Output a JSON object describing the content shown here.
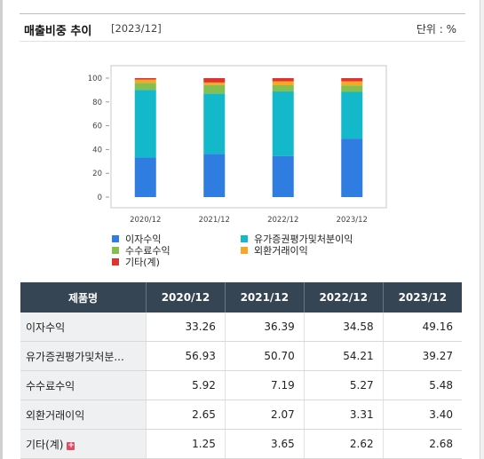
{
  "header": {
    "title": "매출비중 추이",
    "period": "[2023/12]",
    "unit": "단위 : %"
  },
  "table": {
    "headers": [
      "제품명",
      "2020/12",
      "2021/12",
      "2022/12",
      "2023/12"
    ],
    "rows": [
      {
        "name": "이자수익",
        "values": [
          "33.26",
          "36.39",
          "34.58",
          "49.16"
        ]
      },
      {
        "name": "유가증권평가및처분...",
        "values": [
          "56.93",
          "50.70",
          "54.21",
          "39.27"
        ]
      },
      {
        "name": "수수료수익",
        "values": [
          "5.92",
          "7.19",
          "5.27",
          "5.48"
        ]
      },
      {
        "name": "외환거래이익",
        "values": [
          "2.65",
          "2.07",
          "3.31",
          "3.40"
        ]
      },
      {
        "name": "기타(계)",
        "values": [
          "1.25",
          "3.65",
          "2.62",
          "2.68"
        ],
        "expand_icon": "plus-icon"
      }
    ]
  },
  "chart_data": {
    "type": "bar",
    "stacked": true,
    "categories": [
      "2020/12",
      "2021/12",
      "2022/12",
      "2023/12"
    ],
    "ylim": [
      0,
      100
    ],
    "yticks": [
      0,
      20,
      40,
      60,
      80,
      100
    ],
    "grid": false,
    "legend": "bottom",
    "series": [
      {
        "name": "이자수익",
        "color": "#2f7de1",
        "values": [
          33.26,
          36.39,
          34.58,
          49.16
        ]
      },
      {
        "name": "유가증권평가및처분이익",
        "color": "#13b8cb",
        "values": [
          56.93,
          50.7,
          54.21,
          39.27
        ]
      },
      {
        "name": "수수료수익",
        "color": "#86bf4d",
        "values": [
          5.92,
          7.19,
          5.27,
          5.48
        ]
      },
      {
        "name": "외환거래이익",
        "color": "#f5a726",
        "values": [
          2.65,
          2.07,
          3.31,
          3.4
        ]
      },
      {
        "name": "기타(계)",
        "color": "#e3312d",
        "values": [
          1.25,
          3.65,
          2.62,
          2.68
        ]
      }
    ]
  }
}
